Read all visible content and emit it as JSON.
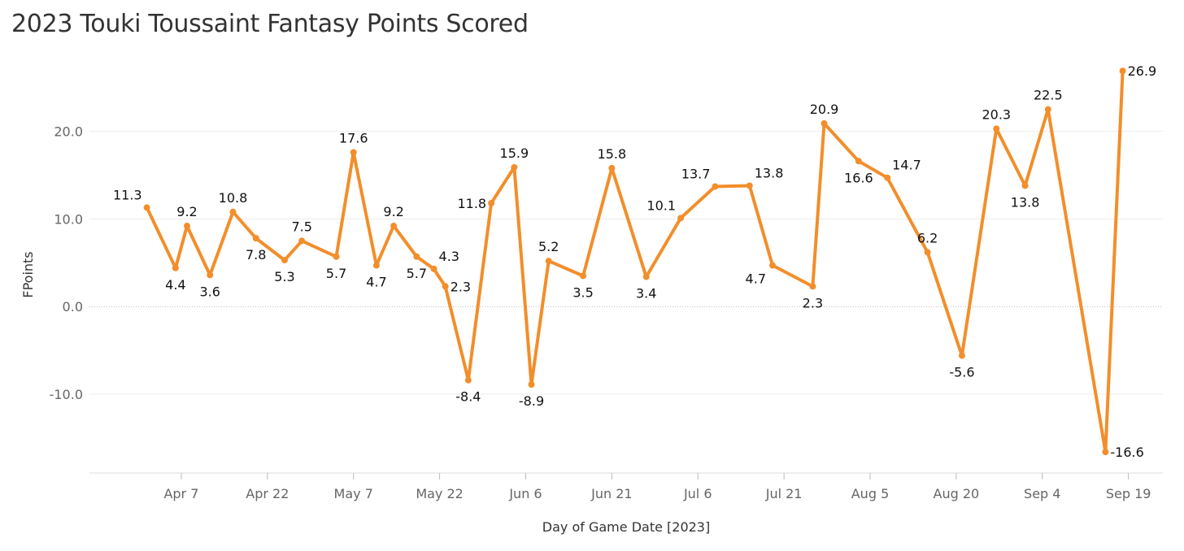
{
  "chart_data": {
    "type": "line",
    "title": "2023 Touki Toussaint Fantasy Points Scored",
    "xlabel": "Day of Game Date [2023]",
    "ylabel": "FPoints",
    "ylim": [
      -19,
      28.5
    ],
    "xlim": [
      "2023-03-22",
      "2023-09-25"
    ],
    "grid": true,
    "color": "#F28E2B",
    "zero_line": true,
    "y_ticks": [
      {
        "value": 20,
        "label": "20.0"
      },
      {
        "value": 10,
        "label": "10.0"
      },
      {
        "value": 0,
        "label": "0.0"
      },
      {
        "value": -10,
        "label": "-10.0"
      }
    ],
    "x_ticks": [
      {
        "date": "2023-04-07",
        "label": "Apr 7"
      },
      {
        "date": "2023-04-22",
        "label": "Apr 22"
      },
      {
        "date": "2023-05-07",
        "label": "May 7"
      },
      {
        "date": "2023-05-22",
        "label": "May 22"
      },
      {
        "date": "2023-06-06",
        "label": "Jun 6"
      },
      {
        "date": "2023-06-21",
        "label": "Jun 21"
      },
      {
        "date": "2023-07-06",
        "label": "Jul 6"
      },
      {
        "date": "2023-07-21",
        "label": "Jul 21"
      },
      {
        "date": "2023-08-05",
        "label": "Aug 5"
      },
      {
        "date": "2023-08-20",
        "label": "Aug 20"
      },
      {
        "date": "2023-09-04",
        "label": "Sep 4"
      },
      {
        "date": "2023-09-19",
        "label": "Sep 19"
      }
    ],
    "points": [
      {
        "date": "2023-04-01",
        "value": 11.3,
        "label": "11.3",
        "pos": "ul"
      },
      {
        "date": "2023-04-06",
        "value": 4.4,
        "label": "4.4",
        "pos": "below"
      },
      {
        "date": "2023-04-08",
        "value": 9.2,
        "label": "9.2",
        "pos": "above"
      },
      {
        "date": "2023-04-12",
        "value": 3.6,
        "label": "3.6",
        "pos": "below"
      },
      {
        "date": "2023-04-16",
        "value": 10.8,
        "label": "10.8",
        "pos": "above"
      },
      {
        "date": "2023-04-20",
        "value": 7.8,
        "label": "7.8",
        "pos": "below"
      },
      {
        "date": "2023-04-25",
        "value": 5.3,
        "label": "5.3",
        "pos": "below"
      },
      {
        "date": "2023-04-28",
        "value": 7.5,
        "label": "7.5",
        "pos": "above"
      },
      {
        "date": "2023-05-04",
        "value": 5.7,
        "label": "5.7",
        "pos": "below"
      },
      {
        "date": "2023-05-07",
        "value": 17.6,
        "label": "17.6",
        "pos": "above"
      },
      {
        "date": "2023-05-11",
        "value": 4.7,
        "label": "4.7",
        "pos": "below"
      },
      {
        "date": "2023-05-14",
        "value": 9.2,
        "label": "9.2",
        "pos": "above"
      },
      {
        "date": "2023-05-18",
        "value": 5.7,
        "label": "5.7",
        "pos": "below"
      },
      {
        "date": "2023-05-21",
        "value": 4.3,
        "label": "4.3",
        "pos": "ur"
      },
      {
        "date": "2023-05-23",
        "value": 2.3,
        "label": "2.3",
        "pos": "right"
      },
      {
        "date": "2023-05-27",
        "value": -8.4,
        "label": "-8.4",
        "pos": "below"
      },
      {
        "date": "2023-05-31",
        "value": 11.8,
        "label": "11.8",
        "pos": "left"
      },
      {
        "date": "2023-06-04",
        "value": 15.9,
        "label": "15.9",
        "pos": "above"
      },
      {
        "date": "2023-06-07",
        "value": -8.9,
        "label": "-8.9",
        "pos": "below"
      },
      {
        "date": "2023-06-10",
        "value": 5.2,
        "label": "5.2",
        "pos": "above"
      },
      {
        "date": "2023-06-16",
        "value": 3.5,
        "label": "3.5",
        "pos": "below"
      },
      {
        "date": "2023-06-21",
        "value": 15.8,
        "label": "15.8",
        "pos": "above"
      },
      {
        "date": "2023-06-27",
        "value": 3.4,
        "label": "3.4",
        "pos": "below"
      },
      {
        "date": "2023-07-03",
        "value": 10.1,
        "label": "10.1",
        "pos": "ul"
      },
      {
        "date": "2023-07-09",
        "value": 13.7,
        "label": "13.7",
        "pos": "ul"
      },
      {
        "date": "2023-07-15",
        "value": 13.8,
        "label": "13.8",
        "pos": "ur"
      },
      {
        "date": "2023-07-19",
        "value": 4.7,
        "label": "4.7",
        "pos": "bl"
      },
      {
        "date": "2023-07-26",
        "value": 2.3,
        "label": "2.3",
        "pos": "below"
      },
      {
        "date": "2023-07-28",
        "value": 20.9,
        "label": "20.9",
        "pos": "above"
      },
      {
        "date": "2023-08-03",
        "value": 16.6,
        "label": "16.6",
        "pos": "below"
      },
      {
        "date": "2023-08-08",
        "value": 14.7,
        "label": "14.7",
        "pos": "ur"
      },
      {
        "date": "2023-08-15",
        "value": 6.2,
        "label": "6.2",
        "pos": "above"
      },
      {
        "date": "2023-08-21",
        "value": -5.6,
        "label": "-5.6",
        "pos": "below"
      },
      {
        "date": "2023-08-27",
        "value": 20.3,
        "label": "20.3",
        "pos": "above"
      },
      {
        "date": "2023-09-01",
        "value": 13.8,
        "label": "13.8",
        "pos": "below"
      },
      {
        "date": "2023-09-05",
        "value": 22.5,
        "label": "22.5",
        "pos": "above"
      },
      {
        "date": "2023-09-15",
        "value": -16.6,
        "label": "-16.6",
        "pos": "right"
      },
      {
        "date": "2023-09-18",
        "value": 26.9,
        "label": "26.9",
        "pos": "right"
      }
    ]
  }
}
